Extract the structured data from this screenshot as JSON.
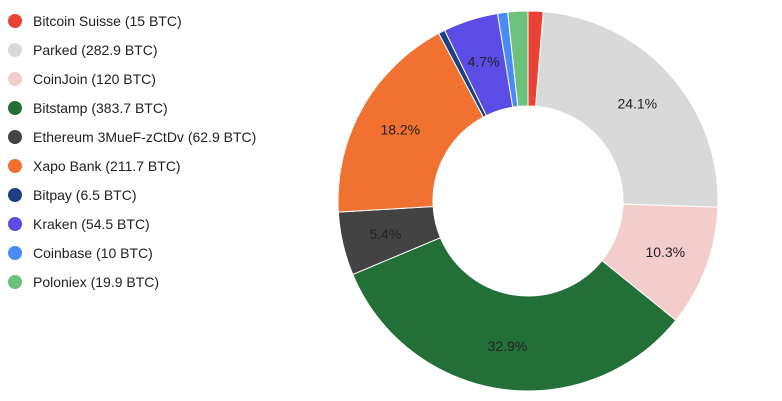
{
  "chart_data": {
    "type": "pie",
    "donut": true,
    "legend_position": "left",
    "unit": "BTC",
    "colors": {
      "label_text": "#222222",
      "background": "#ffffff"
    },
    "slices": [
      {
        "name": "Bitcoin Suisse",
        "legend": "Bitcoin Suisse (15 BTC)",
        "value": 15,
        "percent_label": "",
        "color": "#ea4335"
      },
      {
        "name": "Parked",
        "legend": "Parked (282.9 BTC)",
        "value": 282.9,
        "percent_label": "24.1%",
        "color": "#d9d9d9"
      },
      {
        "name": "CoinJoin",
        "legend": "CoinJoin (120 BTC)",
        "value": 120,
        "percent_label": "10.3%",
        "color": "#f4cccc"
      },
      {
        "name": "Bitstamp",
        "legend": "Bitstamp (383.7 BTC)",
        "value": 383.7,
        "percent_label": "32.9%",
        "color": "#236f38"
      },
      {
        "name": "Ethereum 3MueF-zCtDv",
        "legend": "Ethereum 3MueF-zCtDv (62.9 BTC)",
        "value": 62.9,
        "percent_label": "5.4%",
        "color": "#434343"
      },
      {
        "name": "Xapo Bank",
        "legend": "Xapo Bank (211.7 BTC)",
        "value": 211.7,
        "percent_label": "18.2%",
        "color": "#f07130"
      },
      {
        "name": "Bitpay",
        "legend": "Bitpay (6.5 BTC)",
        "value": 6.5,
        "percent_label": "",
        "color": "#1d3f84"
      },
      {
        "name": "Kraken",
        "legend": "Kraken (54.5 BTC)",
        "value": 54.5,
        "percent_label": "4.7%",
        "color": "#5b4ce6"
      },
      {
        "name": "Coinbase",
        "legend": "Coinbase (10 BTC)",
        "value": 10,
        "percent_label": "",
        "color": "#4a8af4"
      },
      {
        "name": "Poloniex",
        "legend": "Poloniex (19.9 BTC)",
        "value": 19.9,
        "percent_label": "",
        "color": "#6cc17c"
      }
    ]
  }
}
